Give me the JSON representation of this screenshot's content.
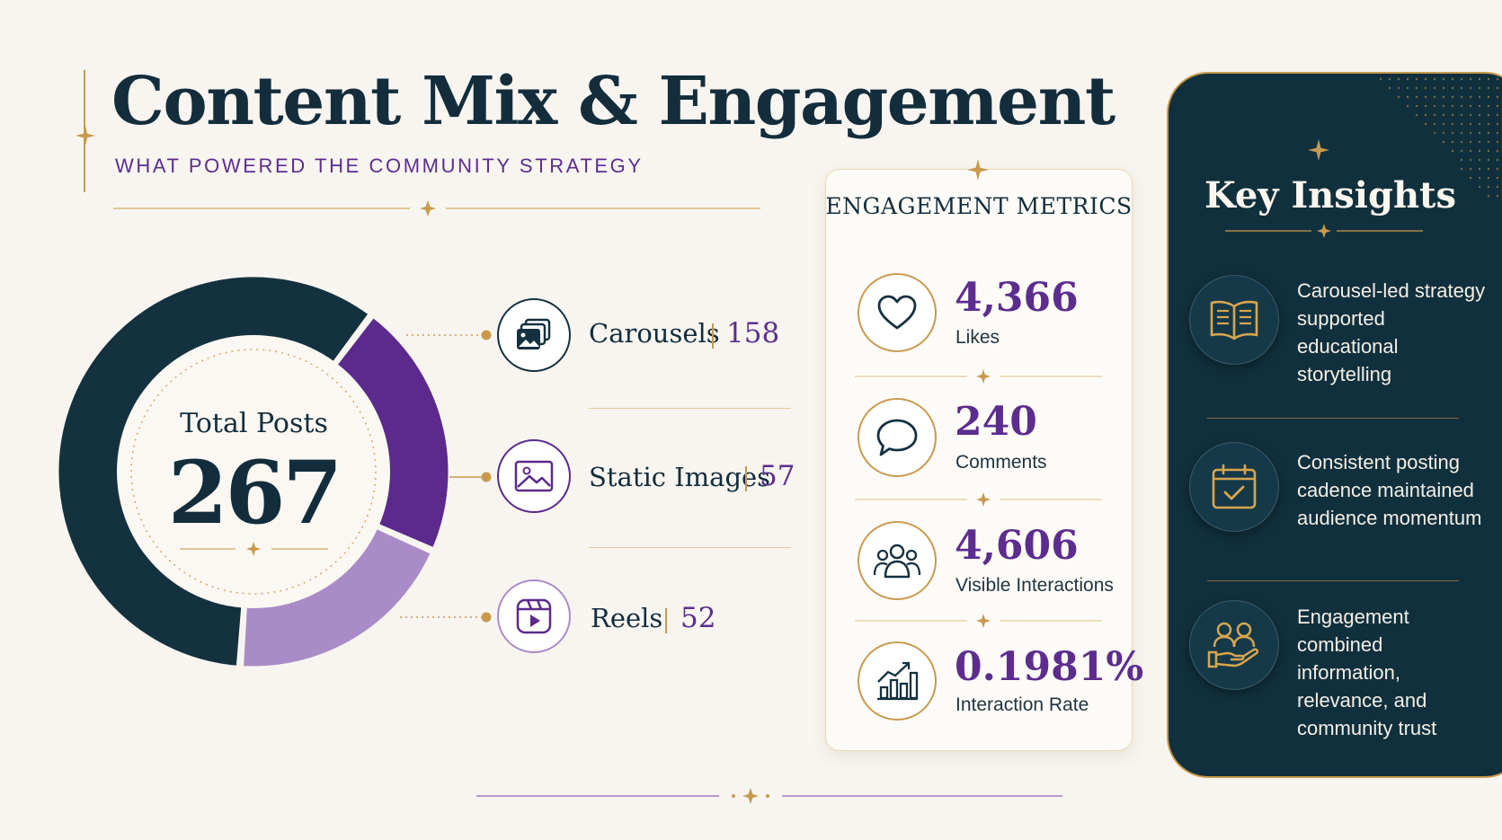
{
  "header": {
    "title": "Content Mix & Engagement",
    "subtitle": "WHAT POWERED THE COMMUNITY STRATEGY"
  },
  "donut": {
    "total_label": "Total Posts",
    "total_value": "267"
  },
  "chart_data": {
    "type": "pie",
    "categories": [
      "Carousels",
      "Static Images",
      "Reels"
    ],
    "values": [
      158,
      57,
      52
    ],
    "total": 267,
    "colors": [
      "#14313f",
      "#5b2a8c",
      "#a98cc7"
    ],
    "value_labels": [
      "158",
      "57",
      "52"
    ]
  },
  "legend": [
    {
      "name": "Carousels",
      "value": "158",
      "icon": "carousel-icon"
    },
    {
      "name": "Static Images",
      "value": "57",
      "icon": "image-icon"
    },
    {
      "name": "Reels",
      "value": "52",
      "icon": "reel-icon"
    }
  ],
  "metrics": {
    "title": "ENGAGEMENT METRICS",
    "items": [
      {
        "value": "4,366",
        "label": "Likes",
        "icon": "heart-icon"
      },
      {
        "value": "240",
        "label": "Comments",
        "icon": "comment-icon"
      },
      {
        "value": "4,606",
        "label": "Visible Interactions",
        "icon": "people-icon"
      },
      {
        "value": "0.1981%",
        "label": "Interaction Rate",
        "icon": "growth-chart-icon"
      }
    ]
  },
  "insights": {
    "title": "Key Insights",
    "items": [
      {
        "text": "Carousel-led strategy supported educational storytelling",
        "icon": "book-icon"
      },
      {
        "text": "Consistent posting cadence maintained audience momentum",
        "icon": "calendar-check-icon"
      },
      {
        "text": "Engagement combined information, relevance, and community trust",
        "icon": "community-hand-icon"
      }
    ]
  },
  "colors": {
    "navy": "#14313f",
    "purple": "#5b2a8c",
    "lavender": "#a98cc7",
    "gold": "#c99a4e",
    "background": "#f8f5f0"
  }
}
